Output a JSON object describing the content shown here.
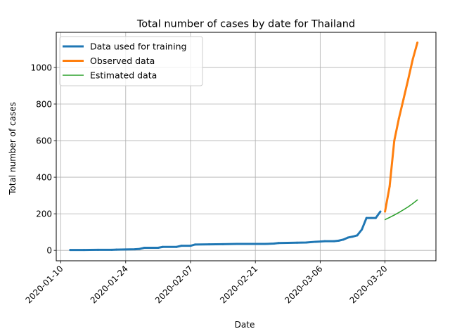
{
  "chart_data": {
    "type": "line",
    "title": "Total number of cases by date for Thailand",
    "xlabel": "Date",
    "ylabel": "Total number of cases",
    "x_ticks": [
      "2020-01-10",
      "2020-01-24",
      "2020-02-07",
      "2020-02-21",
      "2020-03-06",
      "2020-03-20"
    ],
    "y_ticks": [
      0,
      200,
      400,
      600,
      800,
      1000
    ],
    "xlim": [
      "2020-01-09",
      "2020-03-31"
    ],
    "ylim": [
      -57,
      1192
    ],
    "grid": true,
    "legend_position": "top-left",
    "series": [
      {
        "name": "Data used for training",
        "color": "#1f77b4",
        "line_width": "thick",
        "points": [
          [
            "2020-01-12",
            2
          ],
          [
            "2020-01-15",
            2
          ],
          [
            "2020-01-18",
            3
          ],
          [
            "2020-01-21",
            3
          ],
          [
            "2020-01-22",
            4
          ],
          [
            "2020-01-24",
            5
          ],
          [
            "2020-01-26",
            6
          ],
          [
            "2020-01-27",
            8
          ],
          [
            "2020-01-28",
            14
          ],
          [
            "2020-01-31",
            14
          ],
          [
            "2020-02-01",
            19
          ],
          [
            "2020-02-04",
            19
          ],
          [
            "2020-02-05",
            25
          ],
          [
            "2020-02-07",
            25
          ],
          [
            "2020-02-08",
            32
          ],
          [
            "2020-02-11",
            33
          ],
          [
            "2020-02-14",
            34
          ],
          [
            "2020-02-17",
            35
          ],
          [
            "2020-02-20",
            35
          ],
          [
            "2020-02-23",
            35
          ],
          [
            "2020-02-25",
            37
          ],
          [
            "2020-02-26",
            40
          ],
          [
            "2020-02-28",
            41
          ],
          [
            "2020-03-01",
            42
          ],
          [
            "2020-03-03",
            43
          ],
          [
            "2020-03-05",
            47
          ],
          [
            "2020-03-06",
            48
          ],
          [
            "2020-03-07",
            50
          ],
          [
            "2020-03-09",
            50
          ],
          [
            "2020-03-10",
            53
          ],
          [
            "2020-03-11",
            59
          ],
          [
            "2020-03-12",
            70
          ],
          [
            "2020-03-13",
            75
          ],
          [
            "2020-03-14",
            82
          ],
          [
            "2020-03-15",
            114
          ],
          [
            "2020-03-16",
            177
          ],
          [
            "2020-03-17",
            177
          ],
          [
            "2020-03-18",
            177
          ],
          [
            "2020-03-19",
            212
          ]
        ]
      },
      {
        "name": "Observed data",
        "color": "#ff7f0e",
        "line_width": "thick",
        "points": [
          [
            "2020-03-20",
            212
          ],
          [
            "2020-03-21",
            350
          ],
          [
            "2020-03-22",
            599
          ],
          [
            "2020-03-23",
            721
          ],
          [
            "2020-03-24",
            827
          ],
          [
            "2020-03-25",
            934
          ],
          [
            "2020-03-26",
            1045
          ],
          [
            "2020-03-27",
            1136
          ]
        ]
      },
      {
        "name": "Estimated data",
        "color": "#2ca02c",
        "line_width": "thin",
        "points": [
          [
            "2020-03-20",
            168
          ],
          [
            "2020-03-21",
            180
          ],
          [
            "2020-03-22",
            193
          ],
          [
            "2020-03-23",
            207
          ],
          [
            "2020-03-24",
            222
          ],
          [
            "2020-03-25",
            238
          ],
          [
            "2020-03-26",
            256
          ],
          [
            "2020-03-27",
            276
          ]
        ]
      }
    ]
  }
}
